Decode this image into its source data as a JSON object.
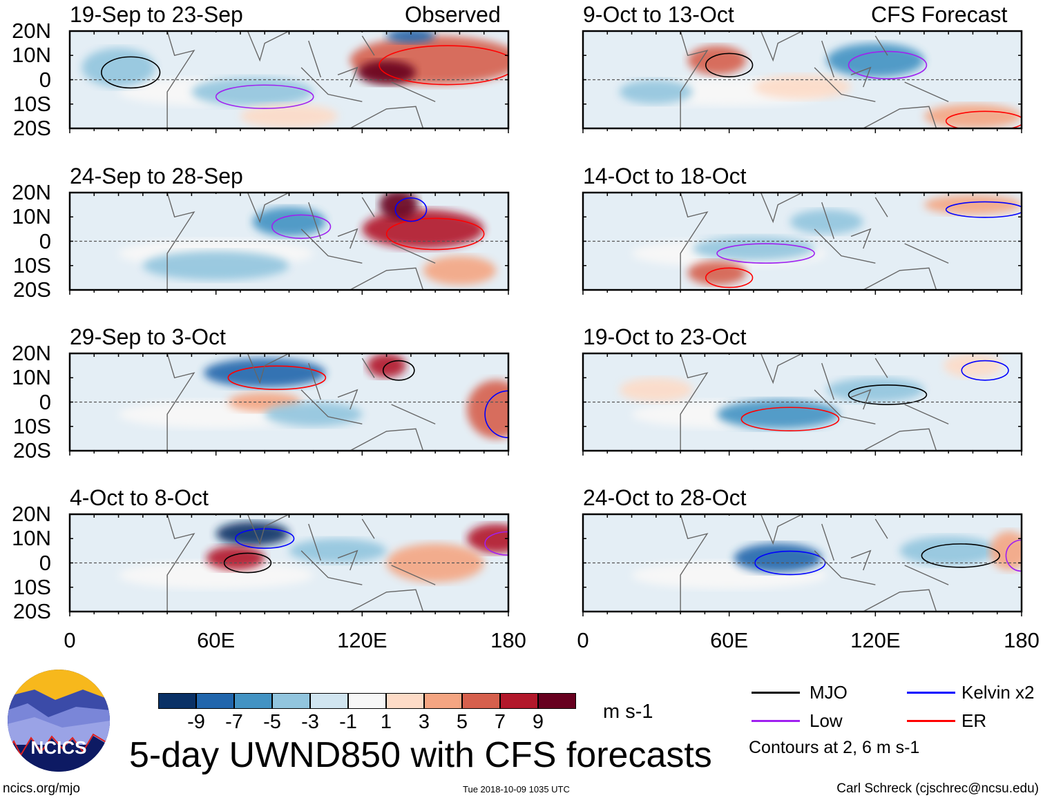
{
  "panels": {
    "left": [
      {
        "title": "19-Sep to 23-Sep",
        "tag": "Observed"
      },
      {
        "title": "24-Sep to 28-Sep",
        "tag": ""
      },
      {
        "title": "29-Sep to 3-Oct",
        "tag": ""
      },
      {
        "title": "4-Oct to 8-Oct",
        "tag": ""
      }
    ],
    "right": [
      {
        "title": "9-Oct to 13-Oct",
        "tag": "CFS Forecast"
      },
      {
        "title": "14-Oct to 18-Oct",
        "tag": ""
      },
      {
        "title": "19-Oct to 23-Oct",
        "tag": ""
      },
      {
        "title": "24-Oct to 28-Oct",
        "tag": ""
      }
    ]
  },
  "lat_labels": [
    "20N",
    "10N",
    "0",
    "10S",
    "20S"
  ],
  "lon_labels": [
    "0",
    "60E",
    "120E",
    "180"
  ],
  "colorbar": {
    "colors": [
      "#0a3166",
      "#2166ac",
      "#4393c3",
      "#92c5de",
      "#d1e5f0",
      "#f7f7f7",
      "#fddbc7",
      "#f4a582",
      "#d6604d",
      "#b2182b",
      "#67001f"
    ],
    "labels": [
      "-9",
      "-7",
      "-5",
      "-3",
      "-1",
      "1",
      "3",
      "5",
      "7",
      "9"
    ],
    "units": "m s-1"
  },
  "title": "5-day UWND850 with CFS forecasts",
  "legend": {
    "items": [
      {
        "label": "MJO",
        "color": "#000000"
      },
      {
        "label": "Kelvin x2",
        "color": "#0000ff"
      },
      {
        "label": "Low",
        "color": "#a020f0"
      },
      {
        "label": "ER",
        "color": "#ff0000"
      }
    ],
    "note": "Contours at 2, 6 m s-1"
  },
  "logo_text": "NCICS",
  "footer": {
    "url": "ncics.org/mjo",
    "timestamp": "Tue 2018-10-09 1035 UTC",
    "author": "Carl Schreck (cjschrec@ncsu.edu)"
  }
}
